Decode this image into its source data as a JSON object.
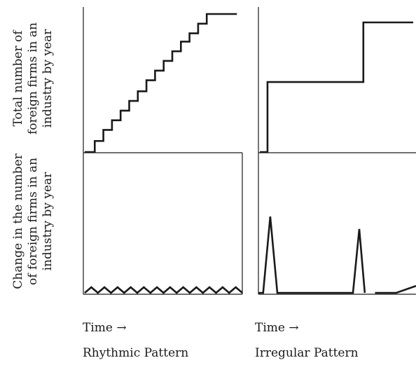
{
  "y_labels": {
    "top": [
      "Total number of",
      "foreign firms in an",
      "industry by year"
    ],
    "bottom": [
      "Change in the number",
      "of foreign firms in an",
      "industry by year"
    ]
  },
  "x_labels": {
    "left": "Time →",
    "right": "Time →"
  },
  "captions": {
    "left": "Rhythmic Pattern",
    "right": "Irregular Pattern"
  },
  "chart_data": [
    {
      "type": "line",
      "panel": "Rhythmic total",
      "title": "",
      "xlabel": "Time →",
      "ylabel": "Total number of foreign firms in an industry by year",
      "xlim": [
        0,
        20
      ],
      "ylim": [
        0,
        100
      ],
      "step": true,
      "x": [
        0,
        1,
        2,
        3,
        4,
        5,
        6,
        7,
        8,
        9,
        10,
        11,
        12,
        13,
        14,
        15,
        16
      ],
      "values": [
        0,
        8,
        16,
        23,
        30,
        37,
        44,
        52,
        59,
        66,
        73,
        80,
        86,
        93,
        100,
        100,
        100
      ],
      "series_end_x": 17.5
    },
    {
      "type": "line",
      "panel": "Irregular total",
      "title": "",
      "xlabel": "Time →",
      "ylabel": "",
      "xlim": [
        0,
        20
      ],
      "ylim": [
        0,
        100
      ],
      "step": true,
      "x": [
        0,
        1,
        13.5
      ],
      "values": [
        0,
        54,
        100
      ],
      "series_end_x": 20
    },
    {
      "type": "line",
      "panel": "Rhythmic change",
      "title": "",
      "xlabel": "Time →",
      "ylabel": "Change in the number of foreign firms in an industry by year",
      "xlim": [
        0,
        20
      ],
      "ylim": [
        0,
        100
      ],
      "zigzag": {
        "cycles": 12,
        "peak": 5
      }
    },
    {
      "type": "line",
      "panel": "Irregular change",
      "title": "",
      "xlabel": "Time →",
      "ylabel": "",
      "xlim": [
        0,
        20
      ],
      "ylim": [
        0,
        100
      ],
      "segments": [
        {
          "x": [
            0,
            0.6,
            1.5,
            2.4,
            12.0,
            12.8,
            13.5
          ],
          "values": [
            0,
            0,
            55,
            0,
            0,
            46,
            0
          ]
        },
        {
          "x": [
            14.8,
            17.5,
            20
          ],
          "values": [
            0,
            0,
            5
          ]
        }
      ]
    }
  ]
}
